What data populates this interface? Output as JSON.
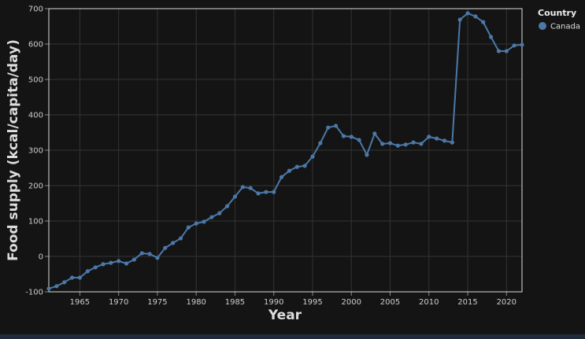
{
  "chart_data": {
    "type": "line",
    "x_label": "Year",
    "y_label": "Food supply (kcal/capita/day)",
    "legend_title": "Country",
    "x": [
      1961,
      1962,
      1963,
      1964,
      1965,
      1966,
      1967,
      1968,
      1969,
      1970,
      1971,
      1972,
      1973,
      1974,
      1975,
      1976,
      1977,
      1978,
      1979,
      1980,
      1981,
      1982,
      1983,
      1984,
      1985,
      1986,
      1987,
      1988,
      1989,
      1990,
      1991,
      1992,
      1993,
      1994,
      1995,
      1996,
      1997,
      1998,
      1999,
      2000,
      2001,
      2002,
      2003,
      2004,
      2005,
      2006,
      2007,
      2008,
      2009,
      2010,
      2011,
      2012,
      2013,
      2014,
      2015,
      2016,
      2017,
      2018,
      2019,
      2020,
      2021,
      2022
    ],
    "series": [
      {
        "name": "Canada",
        "color": "#4c78a8",
        "values": [
          -91,
          -84,
          -73,
          -60,
          -60,
          -42,
          -31,
          -22,
          -18,
          -13,
          -20,
          -9,
          9,
          7,
          -4,
          24,
          38,
          51,
          82,
          93,
          98,
          111,
          122,
          142,
          169,
          196,
          193,
          178,
          182,
          182,
          224,
          242,
          253,
          256,
          282,
          320,
          364,
          369,
          340,
          338,
          329,
          287,
          347,
          318,
          320,
          313,
          316,
          322,
          318,
          338,
          333,
          327,
          322,
          669,
          687,
          678,
          662,
          620,
          580,
          580,
          596,
          598
        ]
      }
    ],
    "xlim": [
      1961,
      2022
    ],
    "ylim": [
      -100,
      700
    ],
    "xticks": [
      1965,
      1970,
      1975,
      1980,
      1985,
      1990,
      1995,
      2000,
      2005,
      2010,
      2015,
      2020
    ],
    "yticks": [
      -100,
      0,
      100,
      200,
      300,
      400,
      500,
      600,
      700
    ],
    "grid": true,
    "legend": "top-right"
  }
}
